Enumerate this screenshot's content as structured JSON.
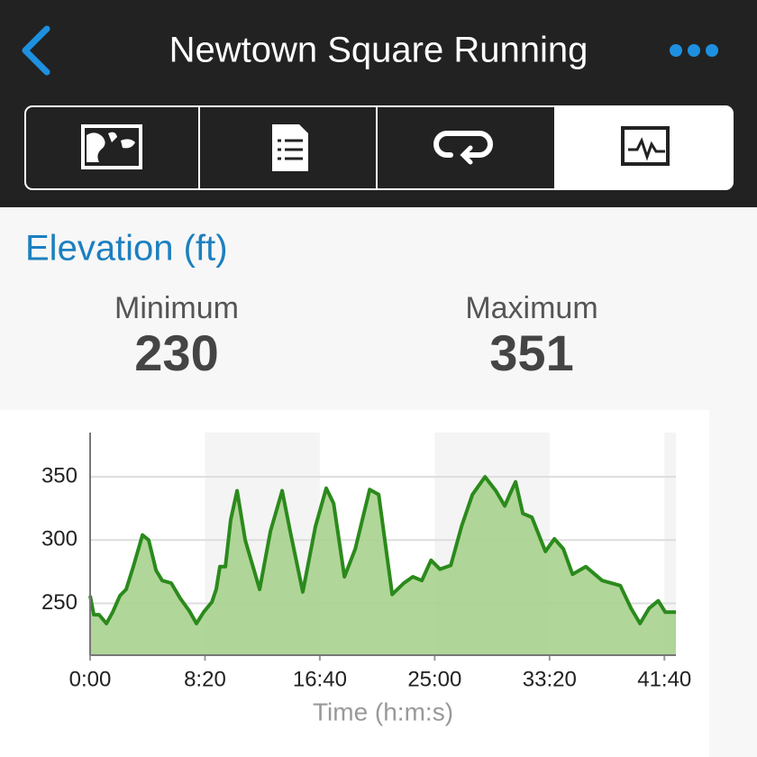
{
  "header": {
    "title": "Newtown Square Running"
  },
  "section": {
    "title": "Elevation (ft)"
  },
  "stats": [
    {
      "label": "Minimum",
      "value": "230"
    },
    {
      "label": "Maximum",
      "value": "351"
    }
  ],
  "chart_data": {
    "type": "area",
    "x": [
      0,
      16,
      39,
      71,
      98,
      130,
      157,
      188,
      228,
      255,
      287,
      314,
      353,
      392,
      432,
      463,
      494,
      530,
      549,
      565,
      589,
      612,
      640,
      675,
      738,
      785,
      836,
      871,
      926,
      981,
      1028,
      1060,
      1107,
      1154,
      1217,
      1256,
      1315,
      1366,
      1405,
      1444,
      1484,
      1523,
      1570,
      1617,
      1664,
      1719,
      1766,
      1805,
      1829,
      1852,
      1884,
      1923,
      1982,
      2021,
      2060,
      2100,
      2158,
      2229,
      2308,
      2355,
      2394,
      2433,
      2473,
      2504,
      2531,
      2550
    ],
    "values": [
      256,
      241,
      241,
      234,
      243,
      256,
      261,
      279,
      304,
      300,
      276,
      268,
      266,
      254,
      244,
      234,
      243,
      251,
      261,
      279,
      279,
      316,
      339,
      300,
      261,
      307,
      339,
      307,
      259,
      311,
      341,
      329,
      271,
      293,
      340,
      336,
      257,
      266,
      271,
      268,
      284,
      277,
      280,
      311,
      336,
      350,
      339,
      327,
      337,
      346,
      321,
      318,
      291,
      301,
      293,
      273,
      279,
      268,
      264,
      246,
      234,
      246,
      252,
      243,
      243,
      243
    ],
    "color": "#2b8a1c",
    "fill_color": "#a9d18e",
    "xlim": [
      0,
      2550
    ],
    "ylim": [
      209,
      385
    ],
    "xticks": [
      {
        "value": 0,
        "label": "0:00"
      },
      {
        "value": 500,
        "label": "8:20"
      },
      {
        "value": 1000,
        "label": "16:40"
      },
      {
        "value": 1500,
        "label": "25:00"
      },
      {
        "value": 2000,
        "label": "33:20"
      },
      {
        "value": 2500,
        "label": "41:40"
      }
    ],
    "yticks": [
      250,
      300,
      350
    ],
    "xlabel": "Time (h:m:s)",
    "grid": true
  }
}
